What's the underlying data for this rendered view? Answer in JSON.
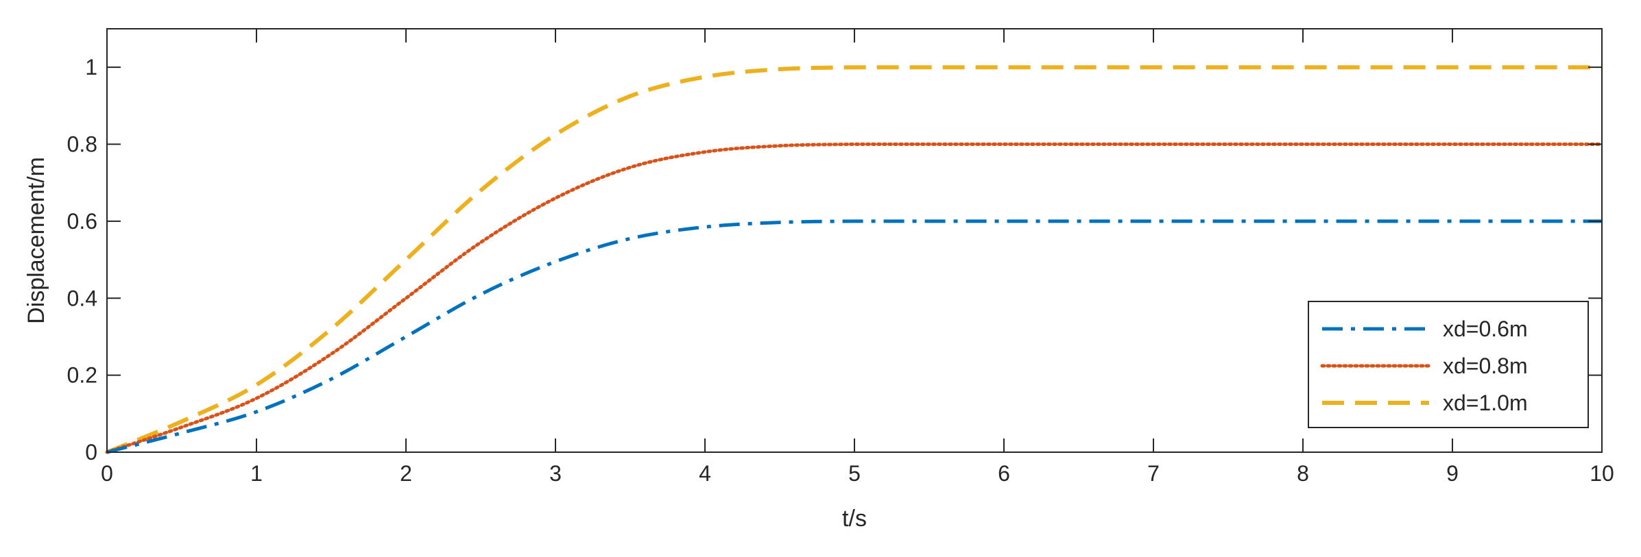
{
  "chart_data": {
    "type": "line",
    "title": "",
    "xlabel": "t/s",
    "ylabel": "Displacement/m",
    "xlim": [
      0,
      10
    ],
    "ylim": [
      0,
      1.1
    ],
    "xticks": [
      0,
      1,
      2,
      3,
      4,
      5,
      6,
      7,
      8,
      9,
      10
    ],
    "yticks": [
      0,
      0.2,
      0.4,
      0.6,
      0.8,
      1
    ],
    "xtick_labels": [
      "0",
      "1",
      "2",
      "3",
      "4",
      "5",
      "6",
      "7",
      "8",
      "9",
      "10"
    ],
    "ytick_labels": [
      "0",
      "0.2",
      "0.4",
      "0.6",
      "0.8",
      "1"
    ],
    "grid": false,
    "box": true,
    "legend_position": "bottom-right",
    "x": [
      0,
      0.5,
      1,
      1.5,
      2,
      2.5,
      3,
      3.5,
      4,
      4.5,
      5,
      5.5,
      6,
      6.5,
      7,
      7.5,
      8,
      8.5,
      9,
      9.5,
      10
    ],
    "series": [
      {
        "name": "xd=0.6m",
        "color": "#0072BD",
        "line_style": "dash-dot",
        "values": [
          0,
          0.05,
          0.105,
          0.19,
          0.3,
          0.41,
          0.495,
          0.555,
          0.585,
          0.597,
          0.6,
          0.6,
          0.6,
          0.6,
          0.6,
          0.6,
          0.6,
          0.6,
          0.6,
          0.6,
          0.6
        ]
      },
      {
        "name": "xd=0.8m",
        "color": "#D95319",
        "line_style": "dotted",
        "values": [
          0,
          0.065,
          0.14,
          0.255,
          0.4,
          0.545,
          0.66,
          0.74,
          0.78,
          0.796,
          0.8,
          0.8,
          0.8,
          0.8,
          0.8,
          0.8,
          0.8,
          0.8,
          0.8,
          0.8,
          0.8
        ]
      },
      {
        "name": "xd=1.0m",
        "color": "#EDB120",
        "line_style": "dashed",
        "values": [
          0,
          0.08,
          0.175,
          0.32,
          0.5,
          0.68,
          0.825,
          0.925,
          0.975,
          0.995,
          1.0,
          1.0,
          1.0,
          1.0,
          1.0,
          1.0,
          1.0,
          1.0,
          1.0,
          1.0,
          1.0
        ]
      }
    ]
  }
}
